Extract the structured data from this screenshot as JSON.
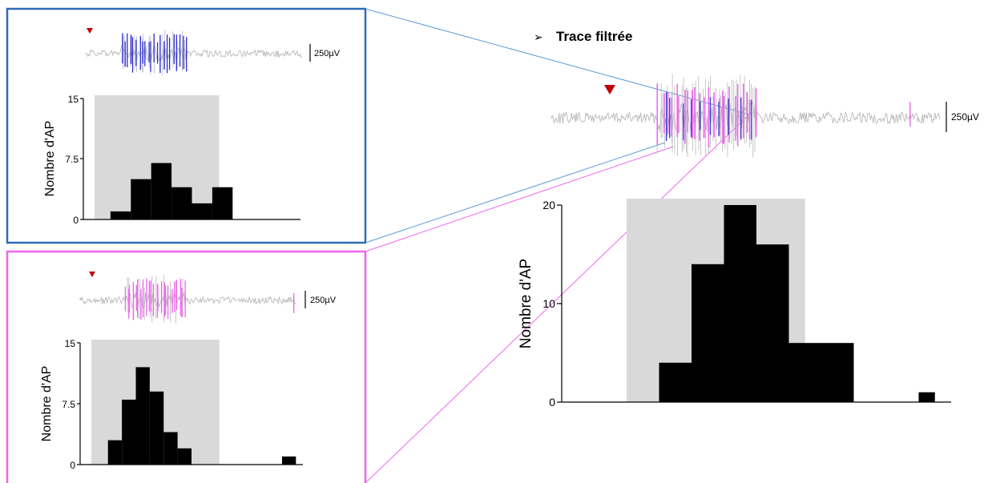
{
  "title": "Trace filtrée",
  "colors": {
    "blue": "#2e6cb5",
    "pink": "#ee66ee",
    "trace_gray": "#b9b9b9",
    "gray_box": "#d9d9d9",
    "marker_red": "#c00000",
    "title_color": "#44546a"
  },
  "scale_bar_label": "250µV",
  "chart_data": [
    {
      "id": "main",
      "type": "bar",
      "ylabel": "Nombre d'AP",
      "yticks": [
        "0",
        "10",
        "20"
      ],
      "ylim": [
        0,
        20
      ],
      "xlim": [
        0,
        12
      ],
      "bins": [
        {
          "x0": 3,
          "x1": 4,
          "value": 4
        },
        {
          "x0": 4,
          "x1": 5,
          "value": 14
        },
        {
          "x0": 5,
          "x1": 6,
          "value": 20
        },
        {
          "x0": 6,
          "x1": 7,
          "value": 16
        },
        {
          "x0": 7,
          "x1": 8,
          "value": 6
        },
        {
          "x0": 8,
          "x1": 9,
          "value": 6
        },
        {
          "x0": 11,
          "x1": 11.5,
          "value": 1
        }
      ],
      "stim_window": [
        2,
        7.5
      ]
    },
    {
      "id": "blue-inset",
      "type": "bar",
      "ylabel": "Nombre d'AP",
      "yticks": [
        "0",
        "7.5",
        "15"
      ],
      "ylim": [
        0,
        15
      ],
      "xlim": [
        0,
        16
      ],
      "bins": [
        {
          "x0": 2,
          "x1": 3.5,
          "value": 1
        },
        {
          "x0": 3.5,
          "x1": 5,
          "value": 5
        },
        {
          "x0": 5,
          "x1": 6.5,
          "value": 7
        },
        {
          "x0": 6.5,
          "x1": 8,
          "value": 4
        },
        {
          "x0": 8,
          "x1": 9.5,
          "value": 2
        },
        {
          "x0": 9.5,
          "x1": 11,
          "value": 4
        }
      ],
      "stim_window": [
        0,
        10
      ]
    },
    {
      "id": "pink-inset",
      "type": "bar",
      "ylabel": "Nombre d'AP",
      "yticks": [
        "0",
        "7.5",
        "15"
      ],
      "ylim": [
        0,
        15
      ],
      "xlim": [
        0,
        16
      ],
      "bins": [
        {
          "x0": 2,
          "x1": 3,
          "value": 3
        },
        {
          "x0": 3,
          "x1": 4,
          "value": 8
        },
        {
          "x0": 4,
          "x1": 5,
          "value": 12
        },
        {
          "x0": 5,
          "x1": 6,
          "value": 9
        },
        {
          "x0": 6,
          "x1": 7,
          "value": 4
        },
        {
          "x0": 7,
          "x1": 8,
          "value": 2
        },
        {
          "x0": 14.5,
          "x1": 15.5,
          "value": 1
        }
      ],
      "stim_window": [
        0,
        10
      ]
    }
  ]
}
